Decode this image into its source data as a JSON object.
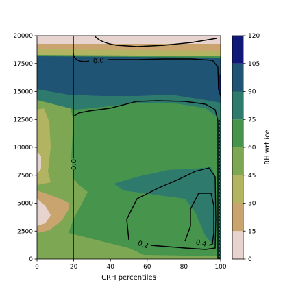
{
  "chart_data": {
    "type": "heatmap",
    "subtype": "filled-contour",
    "xlabel": "CRH percentiles",
    "ylabel": "",
    "xlim": [
      0,
      100
    ],
    "ylim": [
      0,
      20000
    ],
    "x_ticks": [
      "0",
      "20",
      "40",
      "60",
      "80",
      "100"
    ],
    "y_ticks": [
      "0",
      "2500",
      "5000",
      "7500",
      "10000",
      "12500",
      "15000",
      "17500",
      "20000"
    ],
    "colorbar": {
      "label": "RH wrt ice",
      "levels": [
        0,
        15,
        30,
        45,
        60,
        75,
        90,
        105,
        120
      ],
      "tick_labels": [
        "0",
        "15",
        "30",
        "45",
        "60",
        "75",
        "90",
        "105",
        "120"
      ],
      "colors": [
        "#e8d4cf",
        "#c9a46f",
        "#b3b462",
        "#7ea753",
        "#47944d",
        "#2e7b6e",
        "#1f5474",
        "#101878"
      ]
    },
    "filled_regions": [
      {
        "level_band": "90-105",
        "x": [
          0,
          100
        ],
        "y": [
          13500,
          18200
        ]
      },
      {
        "level_band": "75-90",
        "x": [
          0,
          100
        ],
        "y": [
          12800,
          14500
        ]
      },
      {
        "level_band": "75-90",
        "x": [
          40,
          100
        ],
        "y": [
          2500,
          7800
        ]
      },
      {
        "level_band": "60-75",
        "x": [
          20,
          95
        ],
        "y": [
          1000,
          13500
        ]
      },
      {
        "level_band": "45-60",
        "x": [
          0,
          40
        ],
        "y": [
          0,
          14500
        ]
      },
      {
        "level_band": "30-45",
        "x": [
          0,
          8
        ],
        "y": [
          7000,
          13000
        ]
      },
      {
        "level_band": "15-30",
        "x": [
          0,
          20
        ],
        "y": [
          800,
          6000
        ]
      },
      {
        "level_band": "0-15",
        "x": [
          0,
          8
        ],
        "y": [
          2000,
          5000
        ]
      },
      {
        "level_band": "0-15",
        "x": [
          0,
          100
        ],
        "y": [
          19300,
          20000
        ]
      },
      {
        "level_band": "15-30",
        "x": [
          0,
          100
        ],
        "y": [
          18600,
          19300
        ]
      },
      {
        "level_band": "105-120",
        "x": [
          99,
          100
        ],
        "y": [
          14500,
          15500
        ]
      }
    ],
    "contour_lines": [
      {
        "label": "0.0",
        "label_at": [
          33,
          17700
        ]
      },
      {
        "label": "0.0",
        "label_at": [
          21,
          8500
        ]
      },
      {
        "label": "0.2",
        "label_at": [
          57,
          1300
        ]
      },
      {
        "label": "0.4",
        "label_at": [
          90,
          1400
        ]
      }
    ]
  }
}
